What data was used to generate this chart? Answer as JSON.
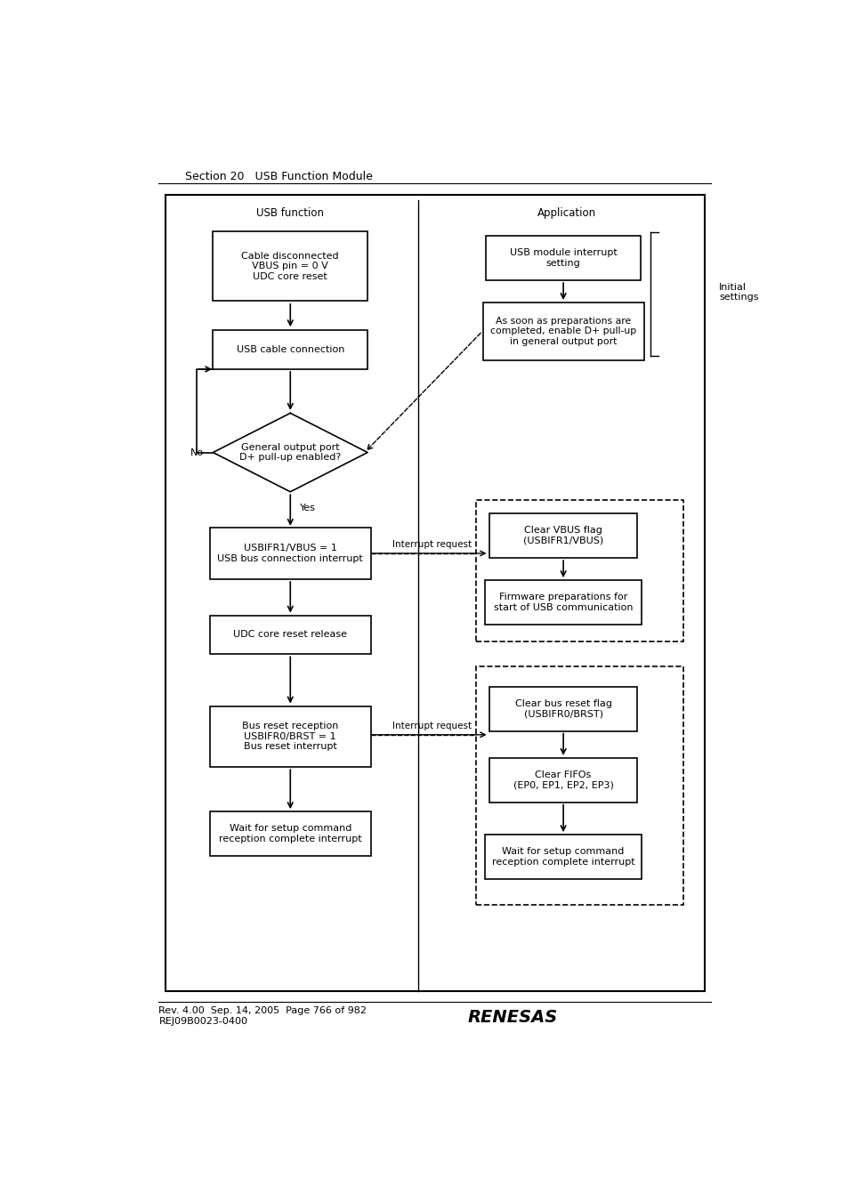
{
  "title_section": "Section 20   USB Function Module",
  "footer_line1": "Rev. 4.00  Sep. 14, 2005  Page 766 of 982",
  "footer_line2": "REJ09B0023-0400",
  "bg_color": "#ffffff",
  "left_column_header": "USB function",
  "right_column_header": "Application",
  "initial_settings_label": "Initial\nsettings"
}
